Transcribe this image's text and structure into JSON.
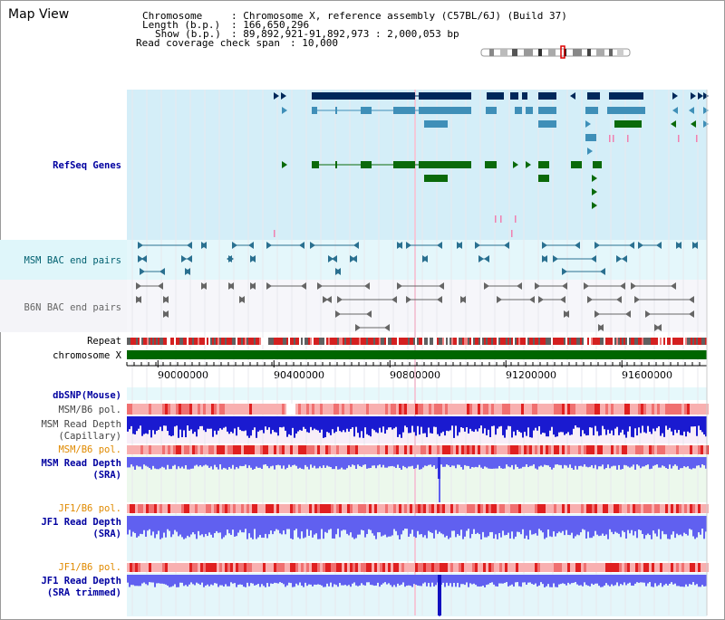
{
  "title": "Map View",
  "header": {
    "chromosome_key": "Chromosome",
    "chromosome_val": ": Chromosome X, reference assembly (C57BL/6J) (Build 37)",
    "length_key": "Length (b.p.)",
    "length_val": ": 166,650,296",
    "show_key": "Show (b.p.)",
    "show_val": ": 89,892,921-91,892,973 : 2,000,053 bp",
    "span_key": "Read coverage check span",
    "span_val": ": 10,000"
  },
  "tracks": {
    "refseq": "RefSeq Genes",
    "msm_bac": "MSM BAC end pairs",
    "b6n_bac": "B6N BAC end pairs",
    "repeat": "Repeat",
    "chrom": "chromosome X",
    "dbsnp": "dbSNP(Mouse)",
    "msm_b6_pol_1": "MSM/B6 pol.",
    "msm_depth_cap_1": "MSM Read Depth",
    "msm_depth_cap_2": "(Capillary)",
    "msm_b6_pol_2": "MSM/B6 pol.",
    "msm_depth_sra_1": "MSM Read Depth",
    "msm_depth_sra_2": "(SRA)",
    "jf1_b6_pol_1": "JF1/B6 pol.",
    "jf1_depth_1": "JF1 Read Depth",
    "jf1_depth_2": "(SRA)",
    "jf1_b6_pol_2": "JF1/B6 pol.",
    "jf1_trim_1": "JF1 Read Depth",
    "jf1_trim_2": "(SRA trimmed)"
  },
  "axis": {
    "ticks": [
      "90000000",
      "90400000",
      "90800000",
      "91200000",
      "91600000"
    ],
    "tick_values": [
      90000000,
      90400000,
      90800000,
      91200000,
      91600000
    ],
    "range": [
      89892921,
      91892973
    ]
  },
  "colors": {
    "gene_dark": "#00285a",
    "gene_mid": "#3f8fb8",
    "gene_green": "#0a6a0a",
    "bac_msm": "#2a7090",
    "bac_b6n": "#666666",
    "depth_blue": "#1a1ad0",
    "depth_light": "#6060f0",
    "label_blue": "#0000a0",
    "label_orange": "#e08a00",
    "label_teal": "#006070"
  }
}
